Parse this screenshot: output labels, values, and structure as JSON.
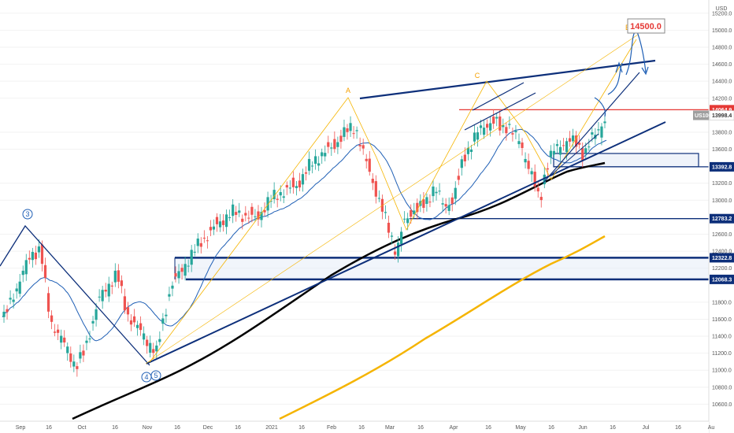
{
  "chart_data": {
    "type": "candlestick",
    "symbol": "US100",
    "currency": "USD",
    "current_price": "13998.4",
    "target_label": "14500.0",
    "y_range": [
      10400,
      15300
    ],
    "x_ticks": [
      "Sep",
      "16",
      "Oct",
      "16",
      "Nov",
      "16",
      "Dec",
      "16",
      "2021",
      "16",
      "Feb",
      "16",
      "Mar",
      "16",
      "Apr",
      "16",
      "May",
      "16",
      "Jun",
      "16",
      "Jul",
      "16",
      "Au"
    ],
    "y_ticks": [
      "15200.0",
      "15000.0",
      "14800.0",
      "14600.0",
      "14400.0",
      "14200.0",
      "13800.0",
      "13600.0",
      "13200.0",
      "13000.0",
      "12600.0",
      "12400.0",
      "12200.0",
      "11800.0",
      "11600.0",
      "11400.0",
      "11200.0",
      "11000.0",
      "10800.0",
      "10600.0"
    ],
    "price_tags": [
      {
        "value": "14064.9",
        "bg": "#e53935",
        "fg": "#ffffff"
      },
      {
        "value": "13392.8",
        "bg": "#0d2f7a",
        "fg": "#ffffff"
      },
      {
        "value": "12783.2",
        "bg": "#0d2f7a",
        "fg": "#ffffff"
      },
      {
        "value": "12322.8",
        "bg": "#0d2f7a",
        "fg": "#ffffff"
      },
      {
        "value": "12068.3",
        "bg": "#0d2f7a",
        "fg": "#ffffff"
      }
    ],
    "horizontal_levels": [
      12783.2,
      13392.8
    ],
    "zones": [
      {
        "from": 12068.3,
        "to": 12322.8
      },
      {
        "from": 13392.8,
        "to": 13550
      }
    ],
    "resistance_level": 14064.9,
    "wave_labels": [
      "3",
      "4",
      "5",
      "A",
      "C",
      "E"
    ],
    "colors": {
      "up": "#26a69a",
      "down": "#ef5350",
      "ma_fast": "#1f5fb5",
      "ma_slow": "#000000",
      "ma_200": "#f5b400",
      "trend": "#0d2f7a",
      "fib": "#f5b400",
      "resistance": "#e53935"
    }
  }
}
